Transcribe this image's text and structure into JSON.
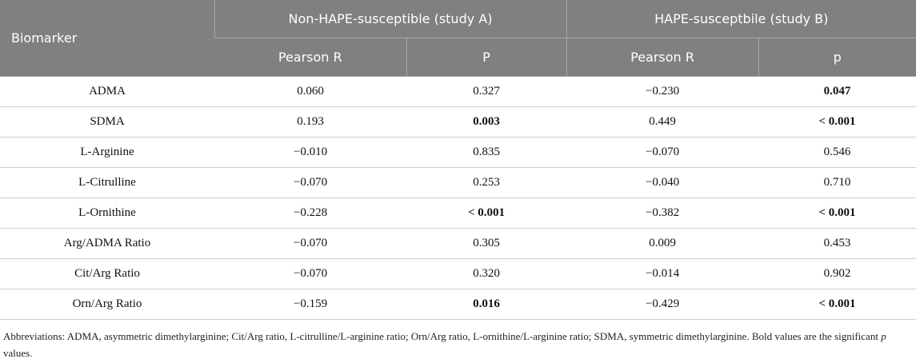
{
  "table": {
    "header": {
      "first": "Biomarker",
      "groups": [
        "Non-HAPE-susceptible (study A)",
        "HAPE-susceptbile (study B)"
      ],
      "sub": [
        "Pearson R",
        "P",
        "Pearson R",
        "p"
      ]
    },
    "rows": [
      [
        "ADMA",
        "0.060",
        "0.327",
        "−0.230",
        {
          "text": "0.047",
          "bold": true
        }
      ],
      [
        "SDMA",
        "0.193",
        {
          "text": "0.003",
          "bold": true
        },
        "0.449",
        {
          "text": "< 0.001",
          "bold": true
        }
      ],
      [
        "L-Arginine",
        "−0.010",
        "0.835",
        "−0.070",
        "0.546"
      ],
      [
        "L-Citrulline",
        "−0.070",
        "0.253",
        "−0.040",
        "0.710"
      ],
      [
        "L-Ornithine",
        "−0.228",
        {
          "text": "< 0.001",
          "bold": true
        },
        "−0.382",
        {
          "text": "< 0.001",
          "bold": true
        }
      ],
      [
        "Arg/ADMA Ratio",
        "−0.070",
        "0.305",
        "0.009",
        "0.453"
      ],
      [
        "Cit/Arg Ratio",
        "−0.070",
        "0.320",
        "−0.014",
        "0.902"
      ],
      [
        "Orn/Arg Ratio",
        "−0.159",
        {
          "text": "0.016",
          "bold": true
        },
        "−0.429",
        {
          "text": "< 0.001",
          "bold": true
        }
      ]
    ]
  },
  "footnote": [
    "Abbreviations: ADMA, asymmetric dimethylarginine; Cit/Arg ratio, L-citrulline/L-arginine ratio; Orn/Arg ratio, L-ornithine/L-arginine ratio; SDMA, symmetric dimethylarginine. Bold values are the significant ",
    "p",
    " values."
  ]
}
